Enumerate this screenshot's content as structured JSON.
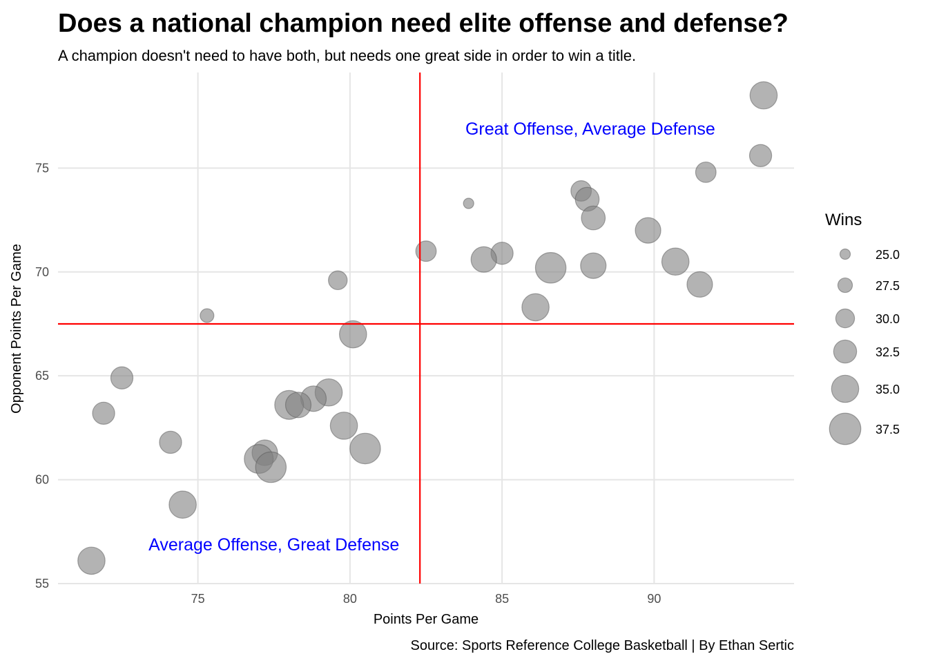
{
  "chart_data": {
    "type": "scatter",
    "title": "Does a national champion need elite offense and defense?",
    "subtitle": "A champion doesn't need to have both, but needs one great side in order to win a title.",
    "xlabel": "Points Per Game",
    "ylabel": "Opponent Points Per Game",
    "caption": "Source: Sports Reference College Basketball | By Ethan Sertic",
    "xlim": [
      70.4,
      94.6
    ],
    "ylim": [
      55,
      79.6
    ],
    "x_ticks": [
      75,
      80,
      85,
      90
    ],
    "y_ticks": [
      55,
      60,
      65,
      70,
      75
    ],
    "grid": true,
    "reference_lines": {
      "x": 82.3,
      "y": 67.5,
      "color": "#ff0000"
    },
    "annotations": [
      {
        "text": "Great Offense, Average Defense",
        "x": 87.9,
        "y": 76.9,
        "color": "#0000ff"
      },
      {
        "text": "Average Offense, Great Defense",
        "x": 77.5,
        "y": 56.9,
        "color": "#0000ff"
      }
    ],
    "size_variable": "Wins",
    "legend": {
      "title": "Wins",
      "position": "right",
      "entries": [
        {
          "label": "25.0",
          "value": 25.0
        },
        {
          "label": "27.5",
          "value": 27.5
        },
        {
          "label": "30.0",
          "value": 30.0
        },
        {
          "label": "32.5",
          "value": 32.5
        },
        {
          "label": "35.0",
          "value": 35.0
        },
        {
          "label": "37.5",
          "value": 37.5
        }
      ]
    },
    "point_color": "#808080",
    "points": [
      {
        "x": 93.6,
        "y": 78.5,
        "wins": 35
      },
      {
        "x": 93.5,
        "y": 75.6,
        "wins": 32
      },
      {
        "x": 91.7,
        "y": 74.8,
        "wins": 31
      },
      {
        "x": 87.6,
        "y": 73.9,
        "wins": 31
      },
      {
        "x": 87.8,
        "y": 73.5,
        "wins": 33
      },
      {
        "x": 88.0,
        "y": 72.6,
        "wins": 33
      },
      {
        "x": 83.9,
        "y": 73.3,
        "wins": 25
      },
      {
        "x": 89.8,
        "y": 72.0,
        "wins": 34
      },
      {
        "x": 82.5,
        "y": 71.0,
        "wins": 31
      },
      {
        "x": 85.0,
        "y": 70.9,
        "wins": 32
      },
      {
        "x": 84.4,
        "y": 70.6,
        "wins": 34
      },
      {
        "x": 90.7,
        "y": 70.5,
        "wins": 35
      },
      {
        "x": 86.6,
        "y": 70.2,
        "wins": 37
      },
      {
        "x": 88.0,
        "y": 70.3,
        "wins": 34
      },
      {
        "x": 91.5,
        "y": 69.4,
        "wins": 34
      },
      {
        "x": 79.6,
        "y": 69.6,
        "wins": 30
      },
      {
        "x": 86.1,
        "y": 68.3,
        "wins": 35
      },
      {
        "x": 75.3,
        "y": 67.9,
        "wins": 27
      },
      {
        "x": 80.1,
        "y": 67.0,
        "wins": 35
      },
      {
        "x": 72.5,
        "y": 64.9,
        "wins": 32
      },
      {
        "x": 79.3,
        "y": 64.2,
        "wins": 35
      },
      {
        "x": 78.8,
        "y": 63.9,
        "wins": 34
      },
      {
        "x": 78.0,
        "y": 63.6,
        "wins": 36
      },
      {
        "x": 78.3,
        "y": 63.6,
        "wins": 34
      },
      {
        "x": 71.9,
        "y": 63.2,
        "wins": 32
      },
      {
        "x": 79.8,
        "y": 62.6,
        "wins": 35
      },
      {
        "x": 74.1,
        "y": 61.8,
        "wins": 32
      },
      {
        "x": 80.5,
        "y": 61.5,
        "wins": 37
      },
      {
        "x": 77.2,
        "y": 61.3,
        "wins": 34
      },
      {
        "x": 77.0,
        "y": 61.0,
        "wins": 36
      },
      {
        "x": 77.4,
        "y": 60.6,
        "wins": 37
      },
      {
        "x": 74.5,
        "y": 58.8,
        "wins": 35
      },
      {
        "x": 71.5,
        "y": 56.1,
        "wins": 35
      }
    ]
  }
}
